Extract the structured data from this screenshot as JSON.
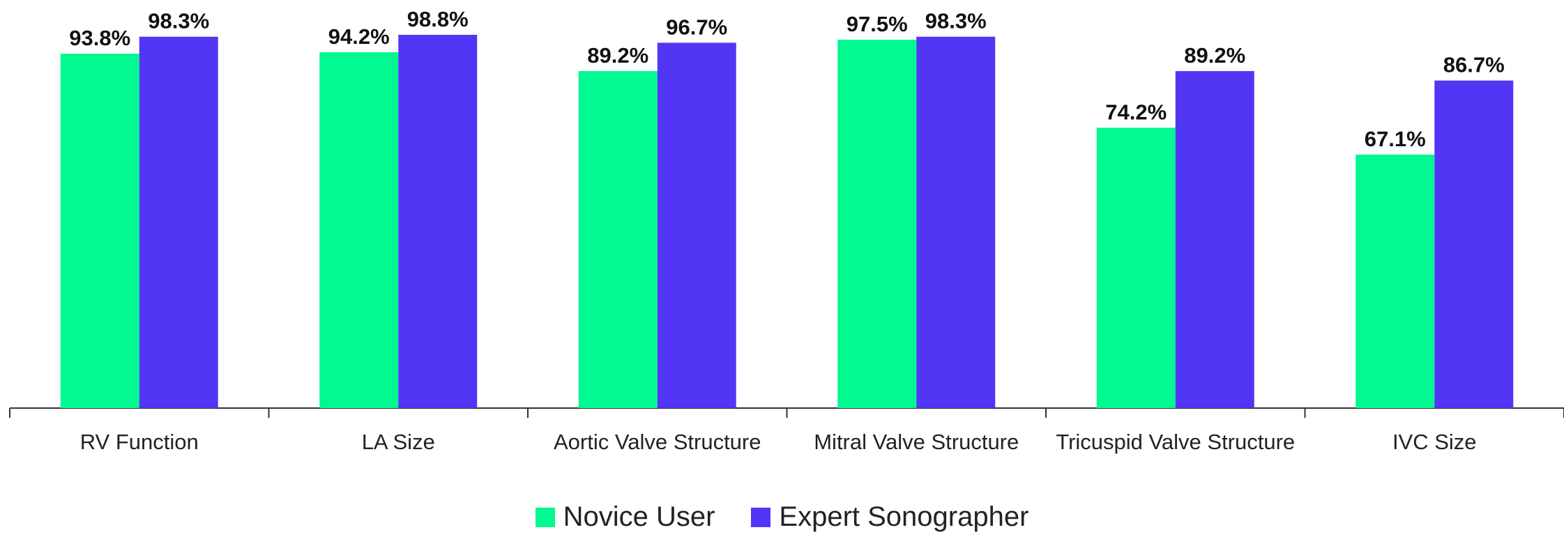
{
  "chart_data": {
    "type": "bar",
    "categories": [
      "RV Function",
      "LA Size",
      "Aortic Valve Structure",
      "Mitral Valve Structure",
      "Tricuspid Valve Structure",
      "IVC Size"
    ],
    "series": [
      {
        "name": "Novice User",
        "color": "#00f990",
        "values": [
          93.8,
          94.2,
          89.2,
          97.5,
          74.2,
          67.1
        ],
        "value_labels": [
          "93.8%",
          "94.2%",
          "89.2%",
          "97.5%",
          "74.2%",
          "67.1%"
        ]
      },
      {
        "name": "Expert Sonographer",
        "color": "#5236f5",
        "values": [
          98.3,
          98.8,
          96.7,
          98.3,
          89.2,
          86.7
        ],
        "value_labels": [
          "98.3%",
          "98.8%",
          "96.7%",
          "98.3%",
          "89.2%",
          "86.7%"
        ]
      }
    ],
    "legend": "bottom"
  }
}
